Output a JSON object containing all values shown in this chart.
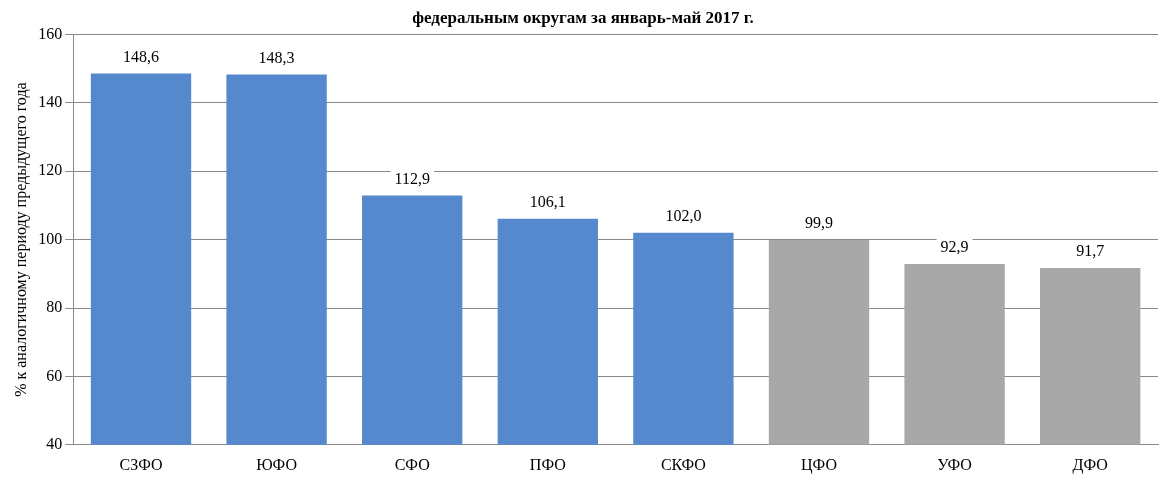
{
  "chart_data": {
    "type": "bar",
    "title": "федеральным округам за январь-май 2017 г.",
    "ylabel": "% к аналогичному периоду предыдущего года",
    "categories": [
      "СЗФО",
      "ЮФО",
      "СФО",
      "ПФО",
      "СКФО",
      "ЦФО",
      "УФО",
      "ДФО"
    ],
    "values": [
      148.6,
      148.3,
      112.9,
      106.1,
      102.0,
      99.9,
      92.9,
      91.7
    ],
    "colors": [
      "#5588cc",
      "#5588cc",
      "#5588cc",
      "#5588cc",
      "#5588cc",
      "#a8a8a8",
      "#a8a8a8",
      "#a8a8a8"
    ],
    "value_labels": [
      "148,6",
      "148,3",
      "112,9",
      "106,1",
      "102,0",
      "99,9",
      "92,9",
      "91,7"
    ],
    "ylim": [
      40,
      160
    ],
    "yticks": [
      40,
      60,
      80,
      100,
      120,
      140,
      160
    ],
    "grid": "y",
    "legend": false
  }
}
